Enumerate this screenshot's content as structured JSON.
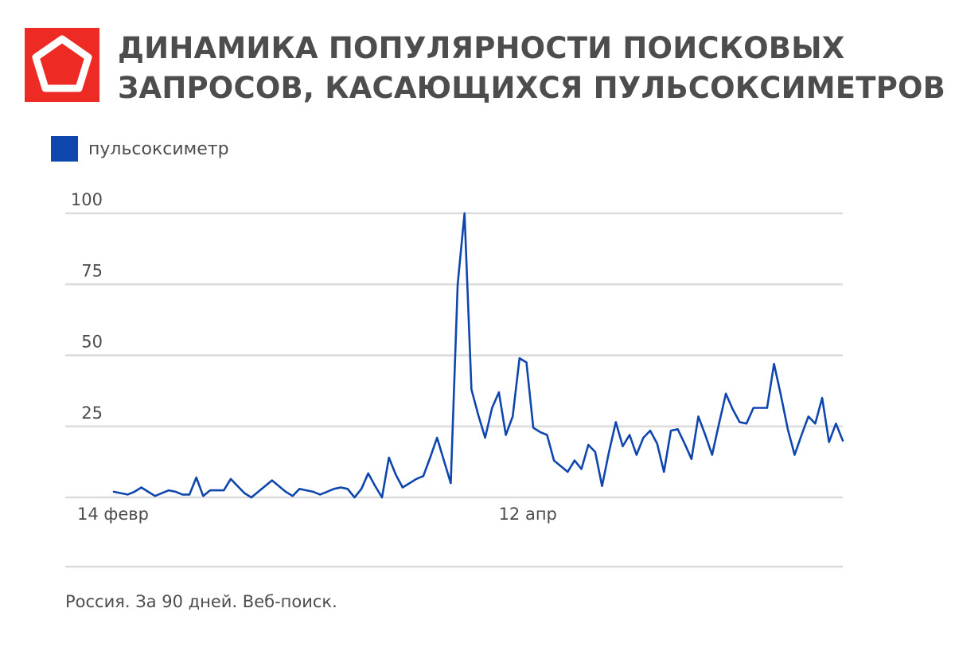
{
  "header": {
    "title_line1": "ДИНАМИКА ПОПУЛЯРНОСТИ ПОИСКОВЫХ",
    "title_line2": "ЗАПРОСОВ, КАСАЮЩИХСЯ ПУЛЬСОКСИМЕТРОВ",
    "logo_color": "#ee2a24"
  },
  "footnote": "Россия. За 90 дней. Веб-поиск.",
  "chart_data": {
    "type": "line",
    "title": "ДИНАМИКА ПОПУЛЯРНОСТИ ПОИСКОВЫХ ЗАПРОСОВ, КАСАЮЩИХСЯ ПУЛЬСОКСИМЕТРОВ",
    "xlabel": "",
    "ylabel": "",
    "ylim": [
      0,
      100
    ],
    "yticks": [
      25,
      50,
      75,
      100
    ],
    "xticks": [
      {
        "index": 0,
        "label": "14 февр"
      },
      {
        "index": 57,
        "label": "12 апр"
      }
    ],
    "grid": true,
    "legend": "top-left",
    "line_color": "#0f46ad",
    "grid_color": "#dcdcdc",
    "series": [
      {
        "name": "пульсоксиметр",
        "values": [
          2,
          1.5,
          1,
          2,
          3.5,
          2,
          0.5,
          1.5,
          2.5,
          2,
          1,
          1,
          7,
          0.5,
          2.5,
          2.5,
          2.5,
          6.5,
          4,
          1.5,
          0,
          2,
          4,
          6,
          4,
          2,
          0.5,
          3,
          2.5,
          2,
          1,
          2,
          3,
          3.5,
          3,
          0,
          3,
          8.5,
          4,
          0,
          14,
          8,
          3.5,
          5,
          6.5,
          7.5,
          14,
          21,
          13,
          5,
          75,
          100,
          38,
          29,
          21,
          31.5,
          37,
          22,
          28.5,
          49,
          47.5,
          24.5,
          23,
          22,
          13,
          11,
          9,
          13,
          10,
          18.5,
          16,
          4,
          16,
          26.5,
          18,
          22,
          15,
          21,
          23.5,
          19,
          9,
          23.5,
          24,
          19,
          13.5,
          28.5,
          22,
          15,
          26,
          36.5,
          31,
          26.5,
          26,
          31.5,
          31.5,
          31.5,
          47,
          36,
          24,
          15,
          22,
          28.5,
          26,
          35,
          19.5,
          26,
          20
        ]
      }
    ]
  }
}
